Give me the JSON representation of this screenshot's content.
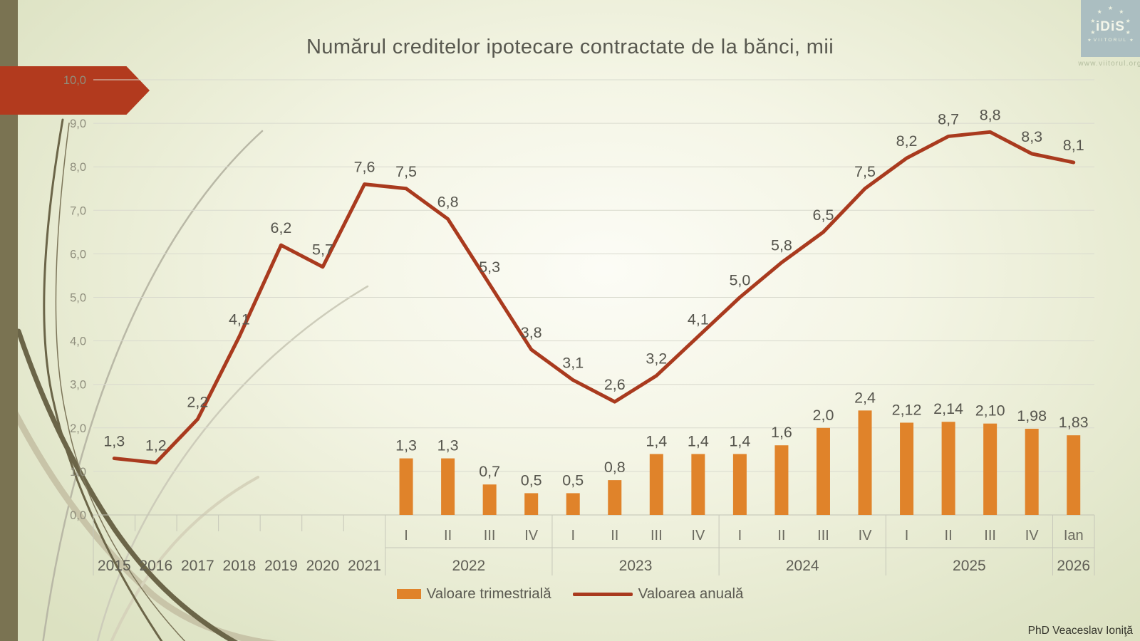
{
  "title": "Numărul creditelor ipotecare contractate de la bănci, mii",
  "attribution": "PhD Veaceslav Ioniţă",
  "logo": {
    "org_short": "iDiS",
    "org_sub": "VIITORUL",
    "website": "www.viitorul.org",
    "star_glyph": "★",
    "bg_color": "#abbec1"
  },
  "legend": {
    "items": [
      {
        "label": "Valoare trimestrială",
        "swatch": "bar",
        "color": "#e0832a"
      },
      {
        "label": "Valoarea anuală",
        "swatch": "line",
        "color": "#a93a1e"
      }
    ]
  },
  "chart_data": {
    "type": "bar+line",
    "title": "Numărul creditelor ipotecare contractate de la bănci, mii",
    "categories": [
      "2015",
      "2016",
      "2017",
      "2018",
      "2019",
      "2020",
      "2021",
      "2022-I",
      "2022-II",
      "2022-III",
      "2022-IV",
      "2023-I",
      "2023-II",
      "2023-III",
      "2023-IV",
      "2024-I",
      "2024-II",
      "2024-III",
      "2024-IV",
      "2025-I",
      "2025-II",
      "2025-III",
      "2025-IV",
      "2026-Ian"
    ],
    "x_axis": {
      "year_columns": [
        "2015",
        "2016",
        "2017",
        "2018",
        "2019",
        "2020",
        "2021"
      ],
      "quarter_groups": [
        {
          "year": "2022",
          "quarters": [
            "I",
            "II",
            "III",
            "IV"
          ]
        },
        {
          "year": "2023",
          "quarters": [
            "I",
            "II",
            "III",
            "IV"
          ]
        },
        {
          "year": "2024",
          "quarters": [
            "I",
            "II",
            "III",
            "IV"
          ]
        },
        {
          "year": "2025",
          "quarters": [
            "I",
            "II",
            "III",
            "IV"
          ]
        },
        {
          "year": "2026",
          "quarters": [
            "Ian"
          ]
        }
      ]
    },
    "series": [
      {
        "name": "Valoare trimestrială",
        "type": "bar",
        "color": "#e0832a",
        "values": [
          null,
          null,
          null,
          null,
          null,
          null,
          null,
          1.3,
          1.3,
          0.7,
          0.5,
          0.5,
          0.8,
          1.4,
          1.4,
          1.4,
          1.6,
          2.0,
          2.4,
          2.12,
          2.14,
          2.1,
          1.98,
          1.83
        ],
        "labels": [
          null,
          null,
          null,
          null,
          null,
          null,
          null,
          "1,3",
          "1,3",
          "0,7",
          "0,5",
          "0,5",
          "0,8",
          "1,4",
          "1,4",
          "1,4",
          "1,6",
          "2,0",
          "2,4",
          "2,12",
          "2,14",
          "2,10",
          "1,98",
          "1,83"
        ]
      },
      {
        "name": "Valoarea anuală",
        "type": "line",
        "color": "#a93a1e",
        "values": [
          1.3,
          1.2,
          2.2,
          4.1,
          6.2,
          5.7,
          7.6,
          7.5,
          6.8,
          5.3,
          3.8,
          3.1,
          2.6,
          3.2,
          4.1,
          5.0,
          5.8,
          6.5,
          7.5,
          8.2,
          8.7,
          8.8,
          8.3,
          8.1
        ],
        "labels": [
          "1,3",
          "1,2",
          "2,2",
          "4,1",
          "6,2",
          "5,7",
          "7,6",
          "7,5",
          "6,8",
          "5,3",
          "3,8",
          "3,1",
          "2,6",
          "3,2",
          "4,1",
          "5,0",
          "5,8",
          "6,5",
          "7,5",
          "8,2",
          "8,7",
          "8,8",
          "8,3",
          "8,1"
        ]
      }
    ],
    "ylim": [
      0,
      10
    ],
    "yticks": [
      "0,0",
      "1,0",
      "2,0",
      "3,0",
      "4,0",
      "5,0",
      "6,0",
      "7,0",
      "8,0",
      "9,0",
      "10,0"
    ],
    "grid": true,
    "legend_position": "bottom"
  }
}
